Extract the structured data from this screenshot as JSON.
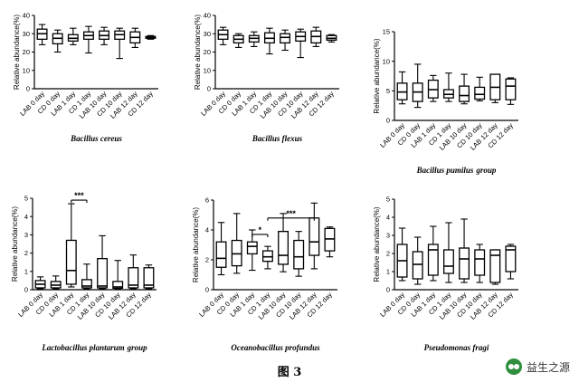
{
  "figure": {
    "caption": "图 3",
    "watermark": "益生之源",
    "watermark_icon": "wechat-icon"
  },
  "chart_data": [
    {
      "type": "boxplot",
      "title": "Bacillus cereus",
      "ylabel": "Relative abundance(%)",
      "ylim": [
        0,
        40
      ],
      "yticks": [
        0,
        10,
        20,
        30,
        40
      ],
      "categories": [
        "LAB 0 day",
        "CD 0 day",
        "LAB 1 day",
        "CD 1 day",
        "LAB 10 day",
        "CD 10 day",
        "LAB 12 day",
        "CD 12 day"
      ],
      "boxes": [
        {
          "min": 24,
          "q1": 27,
          "median": 30,
          "q3": 32.5,
          "max": 35
        },
        {
          "min": 20,
          "q1": 24.5,
          "median": 27.5,
          "q3": 30,
          "max": 32
        },
        {
          "min": 24,
          "q1": 26,
          "median": 27.5,
          "q3": 29.5,
          "max": 33
        },
        {
          "min": 19.5,
          "q1": 27,
          "median": 29,
          "q3": 31,
          "max": 34
        },
        {
          "min": 24,
          "q1": 27,
          "median": 29,
          "q3": 31.5,
          "max": 33.5
        },
        {
          "min": 16.5,
          "q1": 27,
          "median": 29.5,
          "q3": 31.5,
          "max": 33
        },
        {
          "min": 22.5,
          "q1": 25,
          "median": 28,
          "q3": 31,
          "max": 33
        },
        {
          "min": 27,
          "q1": 27.5,
          "median": 28,
          "q3": 28.5,
          "max": 29
        }
      ],
      "annotations": []
    },
    {
      "type": "boxplot",
      "title": "Bacillus flexus",
      "ylabel": "Relative abundance(%)",
      "ylim": [
        0,
        40
      ],
      "yticks": [
        0,
        10,
        20,
        30,
        40
      ],
      "categories": [
        "LAB 0 day",
        "CD 0 day",
        "LAB 1 day",
        "CD 1 day",
        "LAB 10 day",
        "CD 10 day",
        "LAB 12 day",
        "CD 12 day"
      ],
      "boxes": [
        {
          "min": 24,
          "q1": 27,
          "median": 29.5,
          "q3": 32,
          "max": 33.5
        },
        {
          "min": 22.5,
          "q1": 25,
          "median": 27,
          "q3": 29,
          "max": 30
        },
        {
          "min": 23,
          "q1": 25.5,
          "median": 27.5,
          "q3": 29,
          "max": 31
        },
        {
          "min": 19,
          "q1": 25,
          "median": 27.5,
          "q3": 30.5,
          "max": 33
        },
        {
          "min": 21,
          "q1": 25,
          "median": 28,
          "q3": 30,
          "max": 32
        },
        {
          "min": 17,
          "q1": 26,
          "median": 28.5,
          "q3": 31,
          "max": 32.5
        },
        {
          "min": 23,
          "q1": 25,
          "median": 28.5,
          "q3": 31.5,
          "max": 33.5
        },
        {
          "min": 25.5,
          "q1": 26.5,
          "median": 27.5,
          "q3": 29,
          "max": 29.5
        }
      ],
      "annotations": []
    },
    {
      "type": "boxplot",
      "title": "Bacillus pumilus",
      "title_suffix": "group",
      "ylabel": "Relative abundance(%)",
      "ylim": [
        0,
        15
      ],
      "yticks": [
        0,
        5,
        10,
        15
      ],
      "categories": [
        "LAB 0 day",
        "CD 0 day",
        "LAB 1 day",
        "CD 1 day",
        "LAB 10 day",
        "CD 10 day",
        "LAB 12 day",
        "CD 12 day"
      ],
      "boxes": [
        {
          "min": 2.8,
          "q1": 3.5,
          "median": 4.8,
          "q3": 6.3,
          "max": 8.2
        },
        {
          "min": 2.2,
          "q1": 3.2,
          "median": 4.8,
          "q3": 6.3,
          "max": 9.5
        },
        {
          "min": 3.2,
          "q1": 3.8,
          "median": 5.2,
          "q3": 6.8,
          "max": 7.6
        },
        {
          "min": 3.2,
          "q1": 3.8,
          "median": 4.4,
          "q3": 5.2,
          "max": 8
        },
        {
          "min": 2.8,
          "q1": 3.2,
          "median": 4.2,
          "q3": 5.8,
          "max": 7.8
        },
        {
          "min": 3.3,
          "q1": 3.6,
          "median": 4.4,
          "q3": 5.6,
          "max": 7.3
        },
        {
          "min": 3,
          "q1": 3.5,
          "median": 5.6,
          "q3": 7.8,
          "max": 7.8
        },
        {
          "min": 2.7,
          "q1": 3.5,
          "median": 5.8,
          "q3": 7,
          "max": 7.2
        }
      ],
      "annotations": []
    },
    {
      "type": "boxplot",
      "title": "Lactobacillus plantarum",
      "title_suffix": "group",
      "ylabel": "Relative abundance(%)",
      "ylim": [
        0,
        5
      ],
      "yticks": [
        0,
        1,
        2,
        3,
        4,
        5
      ],
      "categories": [
        "LAB 0 day",
        "CD 0 day",
        "LAB 1 day",
        "CD 1 day",
        "LAB 10 day",
        "CD 10 day",
        "LAB 12 day",
        "CD 12 day"
      ],
      "boxes": [
        {
          "min": 0.05,
          "q1": 0.1,
          "median": 0.3,
          "q3": 0.5,
          "max": 0.7
        },
        {
          "min": 0.05,
          "q1": 0.1,
          "median": 0.25,
          "q3": 0.45,
          "max": 0.75
        },
        {
          "min": 0.15,
          "q1": 0.3,
          "median": 1.05,
          "q3": 2.7,
          "max": 4.7
        },
        {
          "min": 0.05,
          "q1": 0.1,
          "median": 0.2,
          "q3": 0.55,
          "max": 1.4
        },
        {
          "min": 0.05,
          "q1": 0.1,
          "median": 0.2,
          "q3": 1.7,
          "max": 2.95
        },
        {
          "min": 0.05,
          "q1": 0.08,
          "median": 0.15,
          "q3": 0.45,
          "max": 1.6
        },
        {
          "min": 0.05,
          "q1": 0.1,
          "median": 0.25,
          "q3": 1.2,
          "max": 1.9
        },
        {
          "min": 0.05,
          "q1": 0.1,
          "median": 0.25,
          "q3": 1.2,
          "max": 1.35
        }
      ],
      "annotations": [
        {
          "text": "***",
          "from": 2,
          "to": 3,
          "y": 4.9
        }
      ]
    },
    {
      "type": "boxplot",
      "title": "Oceanobacillus profundus",
      "ylabel": "Relative abundance(%)",
      "ylim": [
        0,
        6
      ],
      "yticks": [
        0,
        2,
        4,
        6
      ],
      "categories": [
        "LAB 0 day",
        "CD 0 day",
        "LAB 1 day",
        "CD 1 day",
        "LAB 10 day",
        "CD 10 day",
        "LAB 12 day",
        "CD 12 day"
      ],
      "boxes": [
        {
          "min": 1,
          "q1": 1.5,
          "median": 2.1,
          "q3": 3.2,
          "max": 4.5
        },
        {
          "min": 1.1,
          "q1": 1.6,
          "median": 2.4,
          "q3": 3.3,
          "max": 5.1
        },
        {
          "min": 1.3,
          "q1": 2.4,
          "median": 2.9,
          "q3": 3.2,
          "max": 4
        },
        {
          "min": 1.4,
          "q1": 1.9,
          "median": 2.2,
          "q3": 2.6,
          "max": 2.9
        },
        {
          "min": 1.2,
          "q1": 1.7,
          "median": 2.3,
          "q3": 3.9,
          "max": 5.1
        },
        {
          "min": 0.9,
          "q1": 1.4,
          "median": 2.2,
          "q3": 3.3,
          "max": 3.9
        },
        {
          "min": 1.4,
          "q1": 2.3,
          "median": 3.2,
          "q3": 4.8,
          "max": 5.8
        },
        {
          "min": 2.2,
          "q1": 2.6,
          "median": 3.4,
          "q3": 4.1,
          "max": 4.2
        }
      ],
      "annotations": [
        {
          "text": "*",
          "from": 2,
          "to": 3,
          "y": 3.7
        },
        {
          "text": "***",
          "from": 3,
          "to": 6,
          "y": 4.8
        }
      ]
    },
    {
      "type": "boxplot",
      "title": "Pseudomonas fragi",
      "ylabel": "Relative abundance(%)",
      "ylim": [
        0,
        5
      ],
      "yticks": [
        0,
        1,
        2,
        3,
        4,
        5
      ],
      "categories": [
        "LAB 0 day",
        "CD 0 day",
        "LAB 1 day",
        "CD 1 day",
        "LAB 10 day",
        "CD 10 day",
        "LAB 12 day",
        "CD 12 day"
      ],
      "boxes": [
        {
          "min": 0.5,
          "q1": 0.7,
          "median": 1.6,
          "q3": 2.5,
          "max": 3.4
        },
        {
          "min": 0.3,
          "q1": 0.6,
          "median": 1.4,
          "q3": 2.1,
          "max": 2.9
        },
        {
          "min": 0.5,
          "q1": 0.8,
          "median": 2.2,
          "q3": 2.5,
          "max": 3.5
        },
        {
          "min": 0.4,
          "q1": 0.9,
          "median": 1.3,
          "q3": 2.2,
          "max": 3.7
        },
        {
          "min": 0.4,
          "q1": 0.6,
          "median": 1.7,
          "q3": 2.3,
          "max": 3.9
        },
        {
          "min": 0.4,
          "q1": 0.8,
          "median": 1.7,
          "q3": 2.2,
          "max": 2.5
        },
        {
          "min": 0.3,
          "q1": 0.4,
          "median": 1.9,
          "q3": 2.2,
          "max": 2.2
        },
        {
          "min": 0.6,
          "q1": 1,
          "median": 2.2,
          "q3": 2.4,
          "max": 2.5
        }
      ],
      "annotations": []
    }
  ]
}
